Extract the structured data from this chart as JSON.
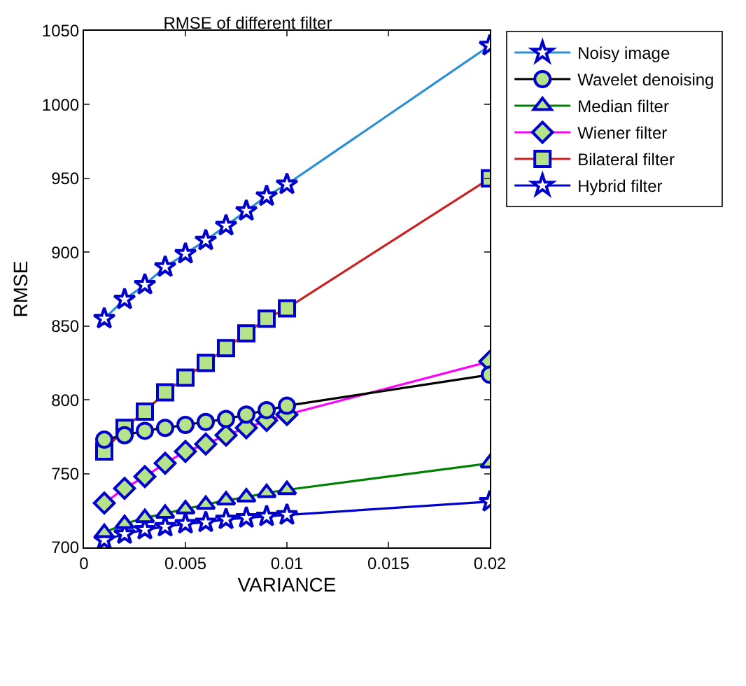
{
  "chart_data": {
    "type": "line",
    "title": "RMSE of different filter",
    "xlabel": "VARIANCE",
    "ylabel": "RMSE",
    "x": [
      0.001,
      0.002,
      0.003,
      0.004,
      0.005,
      0.006,
      0.007,
      0.008,
      0.009,
      0.01,
      0.02
    ],
    "series": [
      {
        "name": "Noisy image",
        "color": "#2b8fd6",
        "marker": "star",
        "values": [
          855,
          868,
          878,
          890,
          899,
          908,
          918,
          928,
          938,
          946,
          1040
        ]
      },
      {
        "name": "Wavelet denoising",
        "color": "#000000",
        "marker": "circle",
        "values": [
          773,
          776,
          779,
          781,
          783,
          785,
          787,
          790,
          793,
          796,
          817
        ]
      },
      {
        "name": "Median filter",
        "color": "#008000",
        "marker": "triangle",
        "values": [
          710,
          716,
          720,
          723,
          726,
          729,
          732,
          734,
          737,
          739,
          757
        ]
      },
      {
        "name": "Wiener filter",
        "color": "#ff00ff",
        "marker": "diamond",
        "values": [
          730,
          740,
          748,
          757,
          765,
          770,
          776,
          781,
          786,
          790,
          826
        ]
      },
      {
        "name": "Bilateral filter",
        "color": "#cc2020",
        "marker": "square",
        "values": [
          765,
          781,
          792,
          805,
          815,
          825,
          835,
          845,
          855,
          862,
          950
        ]
      },
      {
        "name": "Hybrid filter",
        "color": "#0000cc",
        "marker": "star",
        "values": [
          705,
          709,
          712,
          714,
          716,
          717,
          719,
          720,
          721,
          722,
          731
        ]
      }
    ],
    "xlim": [
      0,
      0.02
    ],
    "xticks": [
      0,
      0.005,
      0.01,
      0.015,
      0.02
    ],
    "ylim": [
      700,
      1050
    ],
    "yticks": [
      700,
      750,
      800,
      850,
      900,
      950,
      1000,
      1050
    ],
    "grid": false,
    "legend": "top right",
    "line_style": "solid"
  }
}
